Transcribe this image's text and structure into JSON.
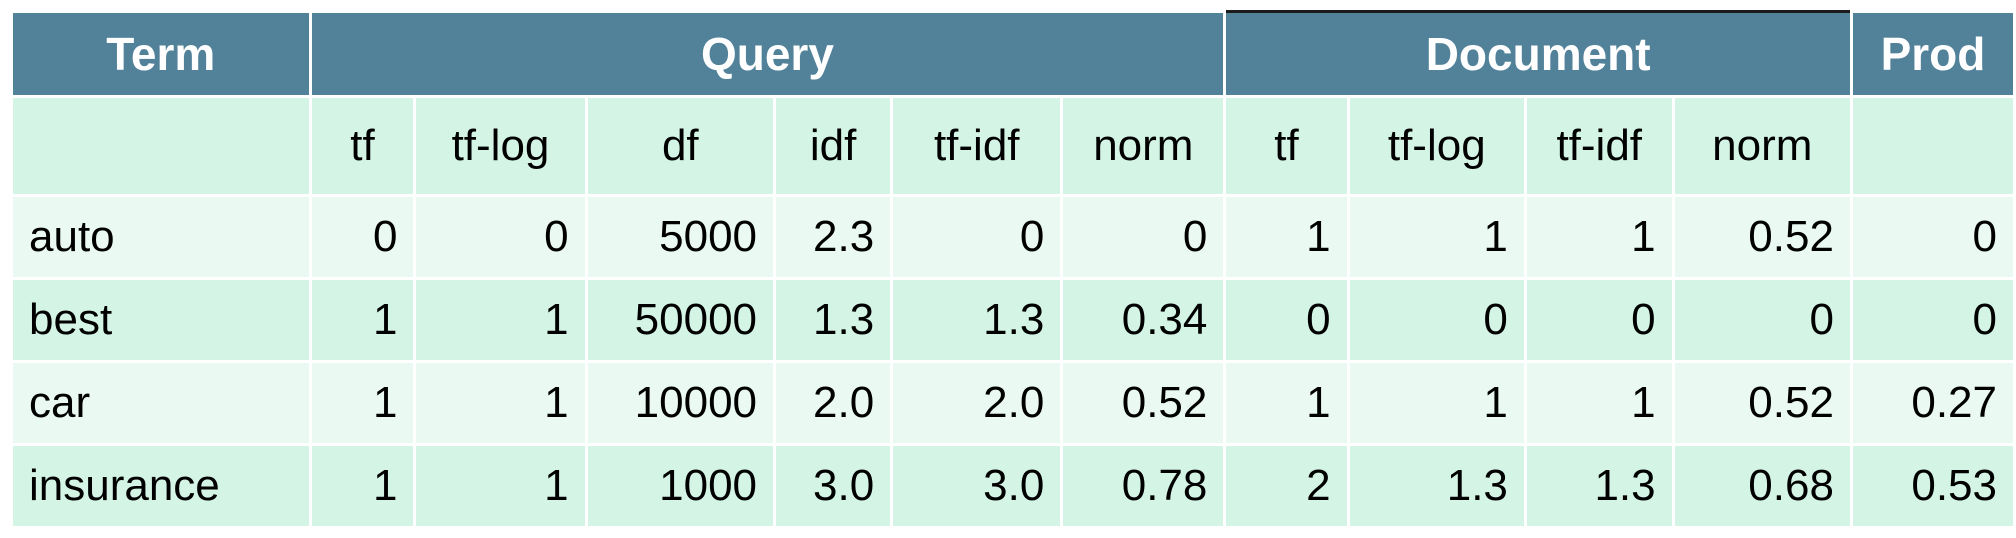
{
  "table": {
    "group_headers": {
      "term": "Term",
      "query": "Query",
      "document": "Document",
      "prod": "Prod"
    },
    "sub_headers": {
      "term": "",
      "query_tf": "tf",
      "query_tf_log": "tf-log",
      "query_df": "df",
      "query_idf": "idf",
      "query_tf_idf": "tf-idf",
      "query_norm": "norm",
      "doc_tf": "tf",
      "doc_tf_log": "tf-log",
      "doc_tf_idf": "tf-idf",
      "doc_norm": "norm",
      "prod": ""
    },
    "rows": [
      {
        "term": "auto",
        "query_tf": "0",
        "query_tf_log": "0",
        "query_df": "5000",
        "query_idf": "2.3",
        "query_tf_idf": "0",
        "query_norm": "0",
        "doc_tf": "1",
        "doc_tf_log": "1",
        "doc_tf_idf": "1",
        "doc_norm": "0.52",
        "prod": "0"
      },
      {
        "term": "best",
        "query_tf": "1",
        "query_tf_log": "1",
        "query_df": "50000",
        "query_idf": "1.3",
        "query_tf_idf": "1.3",
        "query_norm": "0.34",
        "doc_tf": "0",
        "doc_tf_log": "0",
        "doc_tf_idf": "0",
        "doc_norm": "0",
        "prod": "0"
      },
      {
        "term": "car",
        "query_tf": "1",
        "query_tf_log": "1",
        "query_df": "10000",
        "query_idf": "2.0",
        "query_tf_idf": "2.0",
        "query_norm": "0.52",
        "doc_tf": "1",
        "doc_tf_log": "1",
        "doc_tf_idf": "1",
        "doc_norm": "0.52",
        "prod": "0.27"
      },
      {
        "term": "insurance",
        "query_tf": "1",
        "query_tf_log": "1",
        "query_df": "1000",
        "query_idf": "3.0",
        "query_tf_idf": "3.0",
        "query_norm": "0.78",
        "doc_tf": "2",
        "doc_tf_log": "1.3",
        "doc_tf_idf": "1.3",
        "doc_norm": "0.68",
        "prod": "0.53"
      }
    ]
  },
  "colors": {
    "header_bg": "#52829a",
    "header_text": "#ffffff",
    "row_light": "#eaf9f2",
    "row_dark": "#d4f5e6"
  }
}
